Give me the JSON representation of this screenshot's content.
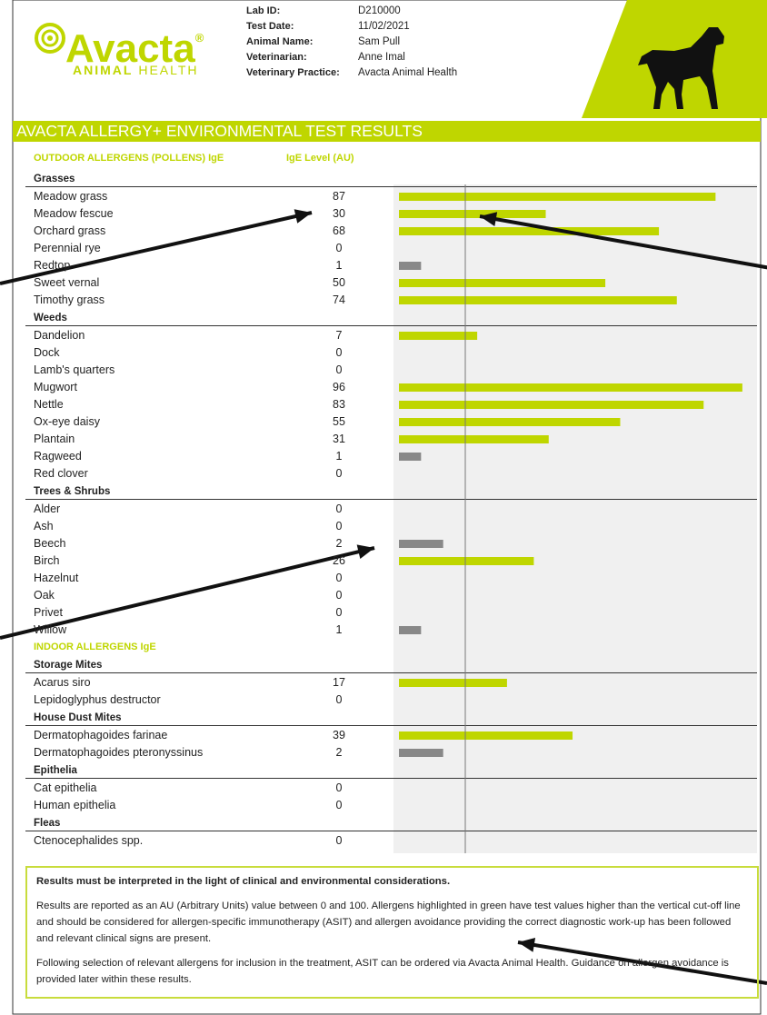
{
  "logo": {
    "name": "Avacta",
    "mark": "®",
    "tagline_bold": "ANIMAL",
    "tagline": "HEALTH"
  },
  "details": [
    {
      "label": "Lab ID:",
      "value": "D210000"
    },
    {
      "label": "Test Date:",
      "value": "11/02/2021"
    },
    {
      "label": "Animal Name:",
      "value": "Sam Pull"
    },
    {
      "label": "Veterinarian:",
      "value": "Anne Imal"
    },
    {
      "label": "Veterinary Practice:",
      "value": "Avacta Animal Health"
    }
  ],
  "title": "AVACTA ALLERGY+ ENVIRONMENTAL TEST RESULTS",
  "xlim": [
    0,
    100
  ],
  "cutoff": 3,
  "colors": {
    "above": "#bfd600",
    "below": "#888888"
  },
  "sections": [
    {
      "heading": "OUTDOOR ALLERGENS (POLLENS) IgE",
      "column_heading": "IgE Level (AU)",
      "groups": [
        {
          "name": "Grasses",
          "items": [
            {
              "name": "Meadow grass",
              "value": 87
            },
            {
              "name": "Meadow fescue",
              "value": 30
            },
            {
              "name": "Orchard grass",
              "value": 68
            },
            {
              "name": "Perennial rye",
              "value": 0
            },
            {
              "name": "Redtop",
              "value": 1
            },
            {
              "name": "Sweet vernal",
              "value": 50
            },
            {
              "name": "Timothy grass",
              "value": 74
            }
          ]
        },
        {
          "name": "Weeds",
          "items": [
            {
              "name": "Dandelion",
              "value": 7
            },
            {
              "name": "Dock",
              "value": 0
            },
            {
              "name": "Lamb's quarters",
              "value": 0
            },
            {
              "name": "Mugwort",
              "value": 96
            },
            {
              "name": "Nettle",
              "value": 83
            },
            {
              "name": "Ox-eye daisy",
              "value": 55
            },
            {
              "name": "Plantain",
              "value": 31
            },
            {
              "name": "Ragweed",
              "value": 1
            },
            {
              "name": "Red clover",
              "value": 0
            }
          ]
        },
        {
          "name": "Trees & Shrubs",
          "items": [
            {
              "name": "Alder",
              "value": 0
            },
            {
              "name": "Ash",
              "value": 0
            },
            {
              "name": "Beech",
              "value": 2
            },
            {
              "name": "Birch",
              "value": 26
            },
            {
              "name": "Hazelnut",
              "value": 0
            },
            {
              "name": "Oak",
              "value": 0
            },
            {
              "name": "Privet",
              "value": 0
            },
            {
              "name": "Willow",
              "value": 1
            }
          ]
        }
      ]
    },
    {
      "heading": "INDOOR ALLERGENS IgE",
      "groups": [
        {
          "name": "Storage Mites",
          "items": [
            {
              "name": "Acarus siro",
              "value": 17
            },
            {
              "name": "Lepidoglyphus destructor",
              "value": 0
            }
          ]
        },
        {
          "name": "House Dust Mites",
          "items": [
            {
              "name": "Dermatophagoides farinae",
              "value": 39
            },
            {
              "name": "Dermatophagoides pteronyssinus",
              "value": 2
            }
          ]
        },
        {
          "name": "Epithelia",
          "items": [
            {
              "name": "Cat epithelia",
              "value": 0
            },
            {
              "name": "Human epithelia",
              "value": 0
            }
          ]
        },
        {
          "name": "Fleas",
          "items": [
            {
              "name": "Ctenocephalides spp.",
              "value": 0
            }
          ]
        }
      ]
    }
  ],
  "notes": {
    "heading": "Results must be interpreted in the light of clinical and environmental considerations.",
    "paragraphs": [
      "Results are reported as an AU (Arbitrary Units) value between 0 and 100. Allergens highlighted in green have test values higher than the vertical cut-off line and should be considered for allergen-specific immunotherapy (ASIT) and allergen avoidance providing the correct diagnostic work-up has been followed and relevant clinical signs are present.",
      "Following selection of relevant allergens for inclusion in the treatment, ASIT can be ordered via Avacta Animal Health. Guidance on allergen avoidance is provided later within these results."
    ]
  }
}
